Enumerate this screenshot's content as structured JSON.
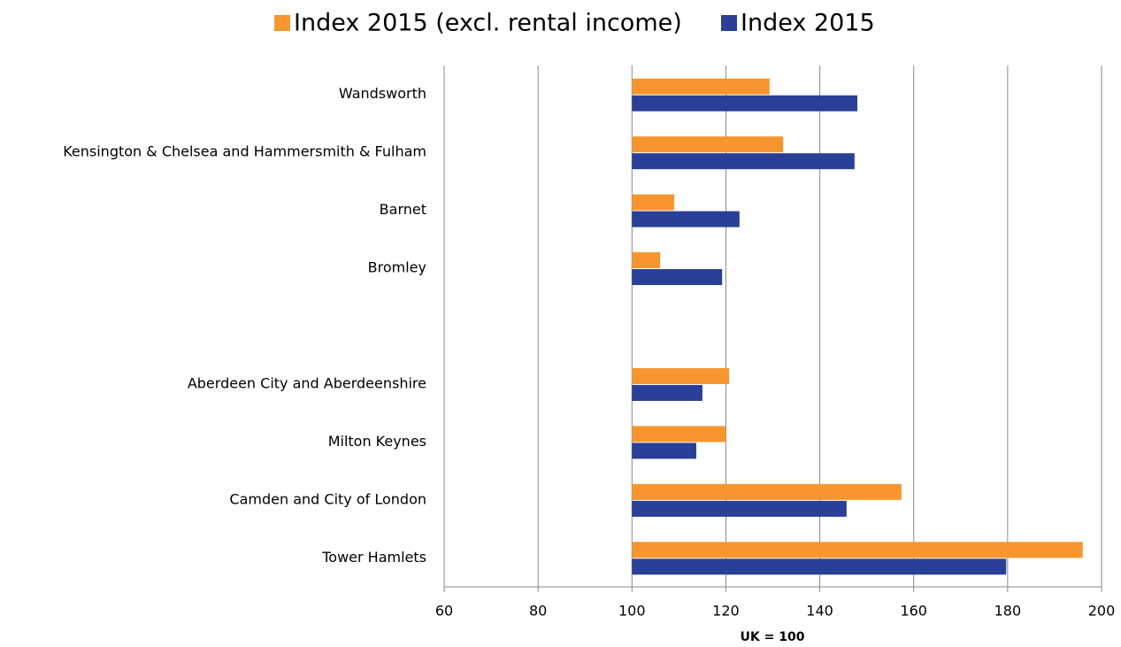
{
  "chart_data": {
    "type": "hbar",
    "categories": [
      "Wandsworth",
      "Kensington & Chelsea and Hammersmith & Fulham",
      "Barnet",
      "Bromley",
      null,
      "Aberdeen City and Aberdeenshire",
      "Milton Keynes",
      "Camden and City of London",
      "Tower Hamlets"
    ],
    "series": [
      {
        "name": "Index 2015 (excl. rental income)",
        "color": "#f7962f",
        "values": [
          129.3,
          132.2,
          109,
          106,
          null,
          120.7,
          120,
          157.4,
          196
        ]
      },
      {
        "name": "Index 2015",
        "color": "#2a3f97",
        "values": [
          148,
          147.4,
          122.9,
          119.2,
          null,
          115,
          113.7,
          145.7,
          179.7
        ]
      }
    ],
    "bar_base": 100,
    "xlim": [
      60,
      200
    ],
    "xticks": [
      60,
      80,
      100,
      120,
      140,
      160,
      180,
      200
    ],
    "xlabel": "UK = 100",
    "grid": true,
    "legend": "top"
  }
}
